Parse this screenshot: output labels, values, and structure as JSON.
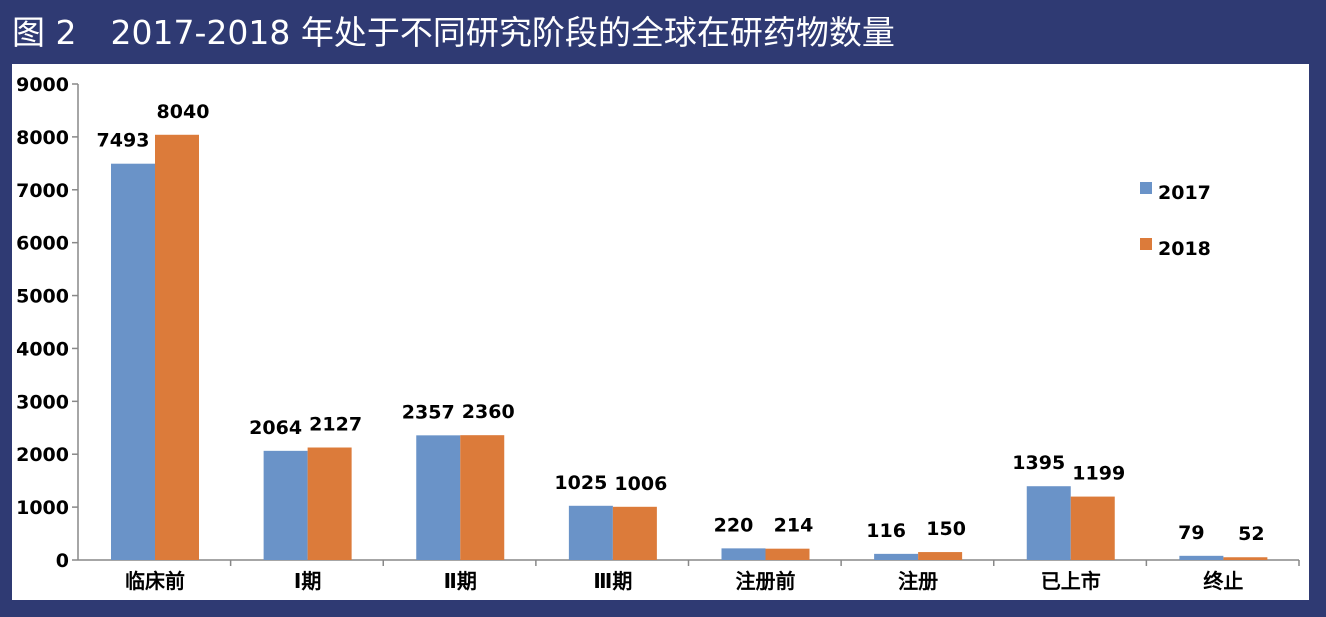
{
  "header": {
    "figure_label": "图 2",
    "title": "2017-2018 年处于不同研究阶段的全球在研药物数量"
  },
  "chart_data": {
    "type": "bar",
    "title": "2017-2018 年处于不同研究阶段的全球在研药物数量",
    "xlabel": "",
    "ylabel": "",
    "categories": [
      "临床前",
      "Ⅰ期",
      "Ⅱ期",
      "Ⅲ期",
      "注册前",
      "注册",
      "已上市",
      "终止"
    ],
    "series": [
      {
        "name": "2017",
        "color": "#6a93c8",
        "values": [
          7493,
          2064,
          2357,
          1025,
          220,
          116,
          1395,
          79
        ]
      },
      {
        "name": "2018",
        "color": "#dc7b3a",
        "values": [
          8040,
          2127,
          2360,
          1006,
          214,
          150,
          1199,
          52
        ]
      }
    ],
    "ylim": [
      0,
      9000
    ],
    "yticks": [
      0,
      1000,
      2000,
      3000,
      4000,
      5000,
      6000,
      7000,
      8000,
      9000
    ],
    "grid": false,
    "legend": "right"
  }
}
